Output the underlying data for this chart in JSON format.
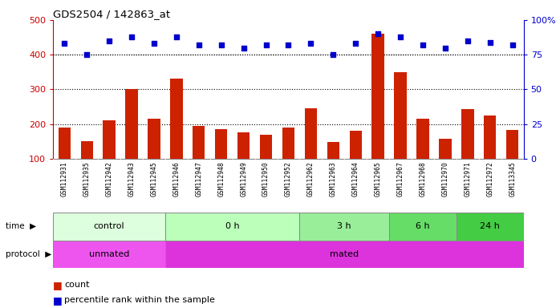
{
  "title": "GDS2504 / 142863_at",
  "samples": [
    "GSM112931",
    "GSM112935",
    "GSM112942",
    "GSM112943",
    "GSM112945",
    "GSM112946",
    "GSM112947",
    "GSM112948",
    "GSM112949",
    "GSM112950",
    "GSM112952",
    "GSM112962",
    "GSM112963",
    "GSM112964",
    "GSM112965",
    "GSM112967",
    "GSM112968",
    "GSM112970",
    "GSM112971",
    "GSM112972",
    "GSM113345"
  ],
  "counts": [
    190,
    150,
    210,
    300,
    215,
    330,
    195,
    185,
    175,
    170,
    190,
    245,
    148,
    180,
    460,
    350,
    215,
    158,
    242,
    225,
    182
  ],
  "percentiles": [
    83,
    75,
    85,
    88,
    83,
    88,
    82,
    82,
    80,
    82,
    82,
    83,
    75,
    83,
    90,
    88,
    82,
    80,
    85,
    84,
    82
  ],
  "bar_color": "#cc2200",
  "dot_color": "#0000cc",
  "time_groups": [
    {
      "label": "control",
      "start": 0,
      "end": 5,
      "color": "#ddffdd"
    },
    {
      "label": "0 h",
      "start": 5,
      "end": 11,
      "color": "#bbffbb"
    },
    {
      "label": "3 h",
      "start": 11,
      "end": 15,
      "color": "#99ee99"
    },
    {
      "label": "6 h",
      "start": 15,
      "end": 18,
      "color": "#66dd66"
    },
    {
      "label": "24 h",
      "start": 18,
      "end": 21,
      "color": "#44cc44"
    }
  ],
  "protocol_groups": [
    {
      "label": "unmated",
      "start": 0,
      "end": 5,
      "color": "#ee55ee"
    },
    {
      "label": "mated",
      "start": 5,
      "end": 21,
      "color": "#dd33dd"
    }
  ],
  "ylim_left": [
    100,
    500
  ],
  "ylim_right": [
    0,
    100
  ],
  "yticks_left": [
    100,
    200,
    300,
    400,
    500
  ],
  "yticks_right": [
    0,
    25,
    50,
    75,
    100
  ],
  "grid_values": [
    200,
    300,
    400
  ],
  "left_axis_color": "#cc0000",
  "right_axis_color": "#0000cc",
  "sample_bg_color": "#dddddd",
  "plot_bg_color": "#ffffff"
}
